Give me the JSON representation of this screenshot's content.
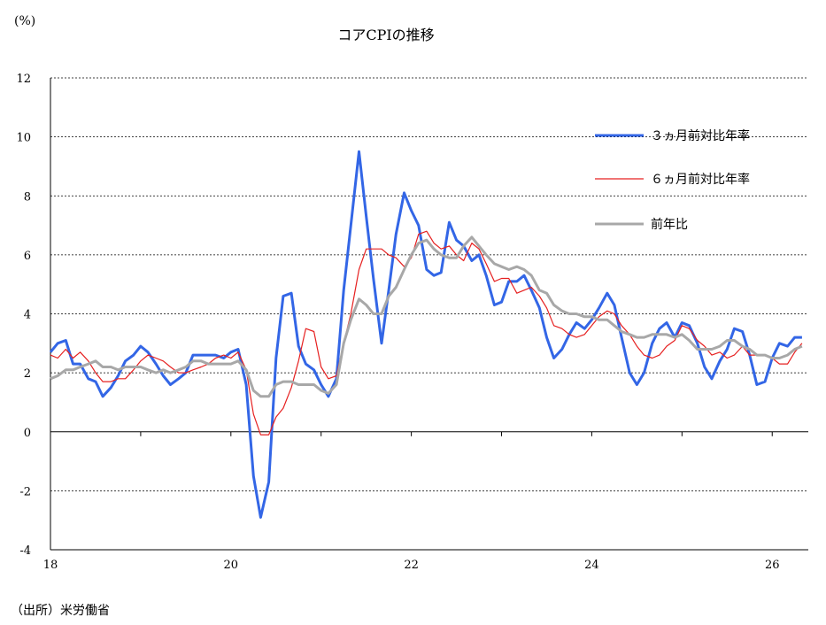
{
  "chart_data": {
    "type": "line",
    "title": "コアCPIの推移",
    "ylabel": "(%)",
    "xlabel": "",
    "source": "（出所）米労働省",
    "ylim": [
      -4,
      12
    ],
    "xlim": [
      2018.0,
      2026.4
    ],
    "y_ticks": [
      -4,
      -2,
      0,
      2,
      4,
      6,
      8,
      10,
      12
    ],
    "x_ticks": [
      {
        "value": 2018,
        "label": "18"
      },
      {
        "value": 2020,
        "label": "20"
      },
      {
        "value": 2022,
        "label": "22"
      },
      {
        "value": 2024,
        "label": "24"
      },
      {
        "value": 2026,
        "label": "26"
      }
    ],
    "grid": "horizontal-dotted",
    "legend_position": "right",
    "series": [
      {
        "name": "３ヵ月前対比年率",
        "color": "#3366e6",
        "values": [
          [
            2018.0,
            2.7
          ],
          [
            2018.08,
            3.0
          ],
          [
            2018.17,
            3.1
          ],
          [
            2018.25,
            2.3
          ],
          [
            2018.33,
            2.3
          ],
          [
            2018.42,
            1.8
          ],
          [
            2018.5,
            1.7
          ],
          [
            2018.58,
            1.2
          ],
          [
            2018.67,
            1.5
          ],
          [
            2018.75,
            1.9
          ],
          [
            2018.83,
            2.4
          ],
          [
            2018.92,
            2.6
          ],
          [
            2019.0,
            2.9
          ],
          [
            2019.08,
            2.7
          ],
          [
            2019.17,
            2.3
          ],
          [
            2019.25,
            1.9
          ],
          [
            2019.33,
            1.6
          ],
          [
            2019.42,
            1.8
          ],
          [
            2019.5,
            2.0
          ],
          [
            2019.58,
            2.6
          ],
          [
            2019.67,
            2.6
          ],
          [
            2019.75,
            2.6
          ],
          [
            2019.83,
            2.6
          ],
          [
            2019.92,
            2.5
          ],
          [
            2020.0,
            2.7
          ],
          [
            2020.08,
            2.8
          ],
          [
            2020.17,
            1.6
          ],
          [
            2020.25,
            -1.5
          ],
          [
            2020.33,
            -2.9
          ],
          [
            2020.42,
            -1.7
          ],
          [
            2020.5,
            2.5
          ],
          [
            2020.58,
            4.6
          ],
          [
            2020.67,
            4.7
          ],
          [
            2020.75,
            2.9
          ],
          [
            2020.83,
            2.3
          ],
          [
            2020.92,
            2.1
          ],
          [
            2021.0,
            1.6
          ],
          [
            2021.08,
            1.2
          ],
          [
            2021.17,
            1.8
          ],
          [
            2021.25,
            4.8
          ],
          [
            2021.33,
            7.0
          ],
          [
            2021.42,
            9.5
          ],
          [
            2021.5,
            7.3
          ],
          [
            2021.58,
            5.2
          ],
          [
            2021.67,
            3.0
          ],
          [
            2021.75,
            4.8
          ],
          [
            2021.83,
            6.7
          ],
          [
            2021.92,
            8.1
          ],
          [
            2022.0,
            7.5
          ],
          [
            2022.08,
            7.0
          ],
          [
            2022.17,
            5.5
          ],
          [
            2022.25,
            5.3
          ],
          [
            2022.33,
            5.4
          ],
          [
            2022.42,
            7.1
          ],
          [
            2022.5,
            6.5
          ],
          [
            2022.58,
            6.3
          ],
          [
            2022.67,
            5.8
          ],
          [
            2022.75,
            6.0
          ],
          [
            2022.83,
            5.3
          ],
          [
            2022.92,
            4.3
          ],
          [
            2023.0,
            4.4
          ],
          [
            2023.08,
            5.1
          ],
          [
            2023.17,
            5.1
          ],
          [
            2023.25,
            5.3
          ],
          [
            2023.33,
            4.8
          ],
          [
            2023.42,
            4.2
          ],
          [
            2023.5,
            3.2
          ],
          [
            2023.58,
            2.5
          ],
          [
            2023.67,
            2.8
          ],
          [
            2023.75,
            3.3
          ],
          [
            2023.83,
            3.7
          ],
          [
            2023.92,
            3.5
          ],
          [
            2024.0,
            3.8
          ],
          [
            2024.08,
            4.2
          ],
          [
            2024.17,
            4.7
          ],
          [
            2024.25,
            4.3
          ],
          [
            2024.33,
            3.2
          ],
          [
            2024.42,
            2.0
          ],
          [
            2024.5,
            1.6
          ],
          [
            2024.58,
            2.0
          ],
          [
            2024.67,
            3.0
          ],
          [
            2024.75,
            3.5
          ],
          [
            2024.83,
            3.7
          ],
          [
            2024.92,
            3.2
          ],
          [
            2025.0,
            3.7
          ],
          [
            2025.08,
            3.6
          ],
          [
            2025.17,
            3.0
          ],
          [
            2025.25,
            2.2
          ],
          [
            2025.33,
            1.8
          ],
          [
            2025.42,
            2.4
          ],
          [
            2025.5,
            2.8
          ],
          [
            2025.58,
            3.5
          ],
          [
            2025.67,
            3.4
          ],
          [
            2025.75,
            2.6
          ],
          [
            2025.83,
            1.6
          ],
          [
            2025.92,
            1.7
          ],
          [
            2026.0,
            2.5
          ],
          [
            2026.08,
            3.0
          ],
          [
            2026.17,
            2.9
          ],
          [
            2026.25,
            3.2
          ],
          [
            2026.33,
            3.2
          ]
        ]
      },
      {
        "name": "６ヵ月前対比年率",
        "color": "#e62020",
        "values": [
          [
            2018.0,
            2.6
          ],
          [
            2018.08,
            2.5
          ],
          [
            2018.17,
            2.8
          ],
          [
            2018.25,
            2.5
          ],
          [
            2018.33,
            2.7
          ],
          [
            2018.42,
            2.4
          ],
          [
            2018.5,
            2.0
          ],
          [
            2018.58,
            1.7
          ],
          [
            2018.67,
            1.7
          ],
          [
            2018.75,
            1.8
          ],
          [
            2018.83,
            1.8
          ],
          [
            2018.92,
            2.1
          ],
          [
            2019.0,
            2.4
          ],
          [
            2019.08,
            2.6
          ],
          [
            2019.17,
            2.5
          ],
          [
            2019.25,
            2.4
          ],
          [
            2019.33,
            2.2
          ],
          [
            2019.42,
            2.0
          ],
          [
            2019.5,
            2.0
          ],
          [
            2019.58,
            2.1
          ],
          [
            2019.67,
            2.2
          ],
          [
            2019.75,
            2.3
          ],
          [
            2019.83,
            2.5
          ],
          [
            2019.92,
            2.6
          ],
          [
            2020.0,
            2.5
          ],
          [
            2020.08,
            2.7
          ],
          [
            2020.17,
            2.1
          ],
          [
            2020.25,
            0.6
          ],
          [
            2020.33,
            -0.1
          ],
          [
            2020.42,
            -0.1
          ],
          [
            2020.5,
            0.5
          ],
          [
            2020.58,
            0.8
          ],
          [
            2020.67,
            1.5
          ],
          [
            2020.75,
            2.4
          ],
          [
            2020.83,
            3.5
          ],
          [
            2020.92,
            3.4
          ],
          [
            2021.0,
            2.2
          ],
          [
            2021.08,
            1.8
          ],
          [
            2021.17,
            1.9
          ],
          [
            2021.25,
            3.0
          ],
          [
            2021.33,
            4.0
          ],
          [
            2021.42,
            5.5
          ],
          [
            2021.5,
            6.2
          ],
          [
            2021.58,
            6.2
          ],
          [
            2021.67,
            6.2
          ],
          [
            2021.75,
            6.0
          ],
          [
            2021.83,
            5.9
          ],
          [
            2021.92,
            5.6
          ],
          [
            2022.0,
            5.9
          ],
          [
            2022.08,
            6.7
          ],
          [
            2022.17,
            6.8
          ],
          [
            2022.25,
            6.4
          ],
          [
            2022.33,
            6.2
          ],
          [
            2022.42,
            6.3
          ],
          [
            2022.5,
            6.0
          ],
          [
            2022.58,
            5.8
          ],
          [
            2022.67,
            6.4
          ],
          [
            2022.75,
            6.2
          ],
          [
            2022.83,
            5.7
          ],
          [
            2022.92,
            5.1
          ],
          [
            2023.0,
            5.2
          ],
          [
            2023.08,
            5.2
          ],
          [
            2023.17,
            4.7
          ],
          [
            2023.25,
            4.8
          ],
          [
            2023.33,
            4.9
          ],
          [
            2023.42,
            4.6
          ],
          [
            2023.5,
            4.2
          ],
          [
            2023.58,
            3.6
          ],
          [
            2023.67,
            3.5
          ],
          [
            2023.75,
            3.3
          ],
          [
            2023.83,
            3.2
          ],
          [
            2023.92,
            3.3
          ],
          [
            2024.0,
            3.6
          ],
          [
            2024.08,
            3.9
          ],
          [
            2024.17,
            4.1
          ],
          [
            2024.25,
            4.0
          ],
          [
            2024.33,
            3.6
          ],
          [
            2024.42,
            3.3
          ],
          [
            2024.5,
            2.9
          ],
          [
            2024.58,
            2.6
          ],
          [
            2024.67,
            2.5
          ],
          [
            2024.75,
            2.6
          ],
          [
            2024.83,
            2.9
          ],
          [
            2024.92,
            3.1
          ],
          [
            2025.0,
            3.6
          ],
          [
            2025.08,
            3.5
          ],
          [
            2025.17,
            3.1
          ],
          [
            2025.25,
            2.9
          ],
          [
            2025.33,
            2.6
          ],
          [
            2025.42,
            2.7
          ],
          [
            2025.5,
            2.5
          ],
          [
            2025.58,
            2.6
          ],
          [
            2025.67,
            2.9
          ],
          [
            2025.75,
            2.6
          ],
          [
            2025.83,
            2.6
          ],
          [
            2025.92,
            2.6
          ],
          [
            2026.0,
            2.5
          ],
          [
            2026.08,
            2.3
          ],
          [
            2026.17,
            2.3
          ],
          [
            2026.25,
            2.7
          ],
          [
            2026.33,
            3.0
          ]
        ]
      },
      {
        "name": "前年比",
        "color": "#a8a8a8",
        "values": [
          [
            2018.0,
            1.8
          ],
          [
            2018.08,
            1.9
          ],
          [
            2018.17,
            2.1
          ],
          [
            2018.25,
            2.1
          ],
          [
            2018.33,
            2.2
          ],
          [
            2018.42,
            2.3
          ],
          [
            2018.5,
            2.4
          ],
          [
            2018.58,
            2.2
          ],
          [
            2018.67,
            2.2
          ],
          [
            2018.75,
            2.1
          ],
          [
            2018.83,
            2.2
          ],
          [
            2018.92,
            2.2
          ],
          [
            2019.0,
            2.2
          ],
          [
            2019.08,
            2.1
          ],
          [
            2019.17,
            2.0
          ],
          [
            2019.25,
            2.1
          ],
          [
            2019.33,
            2.0
          ],
          [
            2019.42,
            2.1
          ],
          [
            2019.5,
            2.2
          ],
          [
            2019.58,
            2.4
          ],
          [
            2019.67,
            2.4
          ],
          [
            2019.75,
            2.3
          ],
          [
            2019.83,
            2.3
          ],
          [
            2019.92,
            2.3
          ],
          [
            2020.0,
            2.3
          ],
          [
            2020.08,
            2.4
          ],
          [
            2020.17,
            2.1
          ],
          [
            2020.25,
            1.4
          ],
          [
            2020.33,
            1.2
          ],
          [
            2020.42,
            1.2
          ],
          [
            2020.5,
            1.6
          ],
          [
            2020.58,
            1.7
          ],
          [
            2020.67,
            1.7
          ],
          [
            2020.75,
            1.6
          ],
          [
            2020.83,
            1.6
          ],
          [
            2020.92,
            1.6
          ],
          [
            2021.0,
            1.4
          ],
          [
            2021.08,
            1.3
          ],
          [
            2021.17,
            1.6
          ],
          [
            2021.25,
            3.0
          ],
          [
            2021.33,
            3.8
          ],
          [
            2021.42,
            4.5
          ],
          [
            2021.5,
            4.3
          ],
          [
            2021.58,
            4.0
          ],
          [
            2021.67,
            4.0
          ],
          [
            2021.75,
            4.6
          ],
          [
            2021.83,
            4.9
          ],
          [
            2021.92,
            5.5
          ],
          [
            2022.0,
            6.0
          ],
          [
            2022.08,
            6.4
          ],
          [
            2022.17,
            6.5
          ],
          [
            2022.25,
            6.2
          ],
          [
            2022.33,
            6.0
          ],
          [
            2022.42,
            5.9
          ],
          [
            2022.5,
            5.9
          ],
          [
            2022.58,
            6.3
          ],
          [
            2022.67,
            6.6
          ],
          [
            2022.75,
            6.3
          ],
          [
            2022.83,
            6.0
          ],
          [
            2022.92,
            5.7
          ],
          [
            2023.0,
            5.6
          ],
          [
            2023.08,
            5.5
          ],
          [
            2023.17,
            5.6
          ],
          [
            2023.25,
            5.5
          ],
          [
            2023.33,
            5.3
          ],
          [
            2023.42,
            4.8
          ],
          [
            2023.5,
            4.7
          ],
          [
            2023.58,
            4.3
          ],
          [
            2023.67,
            4.1
          ],
          [
            2023.75,
            4.0
          ],
          [
            2023.83,
            4.0
          ],
          [
            2023.92,
            3.9
          ],
          [
            2024.0,
            3.9
          ],
          [
            2024.08,
            3.8
          ],
          [
            2024.17,
            3.8
          ],
          [
            2024.25,
            3.6
          ],
          [
            2024.33,
            3.4
          ],
          [
            2024.42,
            3.3
          ],
          [
            2024.5,
            3.2
          ],
          [
            2024.58,
            3.2
          ],
          [
            2024.67,
            3.3
          ],
          [
            2024.75,
            3.3
          ],
          [
            2024.83,
            3.3
          ],
          [
            2024.92,
            3.2
          ],
          [
            2025.0,
            3.3
          ],
          [
            2025.08,
            3.1
          ],
          [
            2025.17,
            2.8
          ],
          [
            2025.25,
            2.8
          ],
          [
            2025.33,
            2.8
          ],
          [
            2025.42,
            2.9
          ],
          [
            2025.5,
            3.1
          ],
          [
            2025.58,
            3.1
          ],
          [
            2025.67,
            2.9
          ],
          [
            2025.75,
            2.8
          ],
          [
            2025.83,
            2.6
          ],
          [
            2025.92,
            2.6
          ],
          [
            2026.0,
            2.5
          ],
          [
            2026.08,
            2.5
          ],
          [
            2026.17,
            2.6
          ],
          [
            2026.25,
            2.8
          ],
          [
            2026.33,
            2.9
          ]
        ]
      }
    ]
  }
}
